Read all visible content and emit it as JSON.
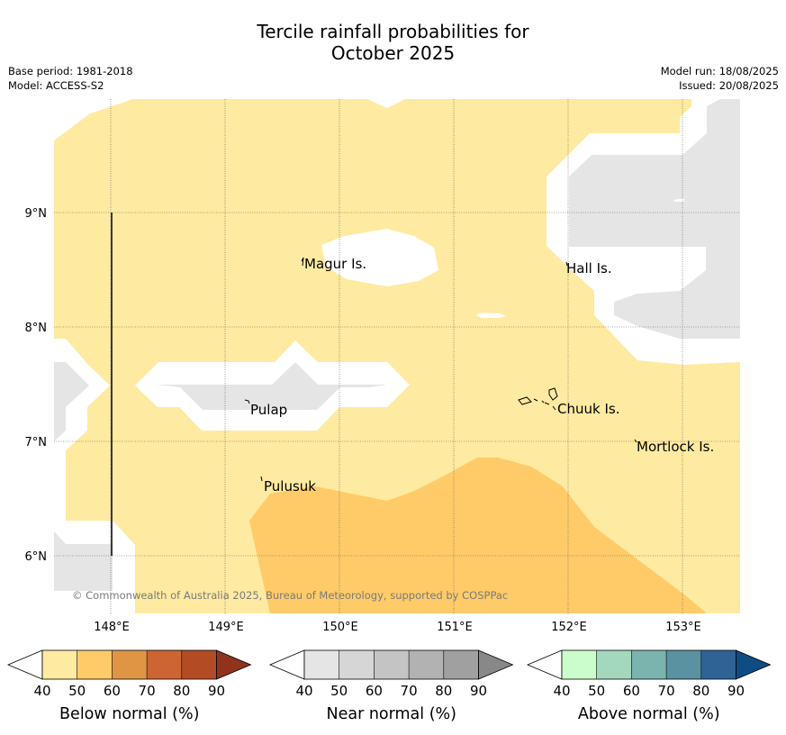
{
  "title": {
    "line1": "Tercile rainfall probabilities for",
    "line2": "October 2025"
  },
  "meta": {
    "base_period": "Base period: 1981-2018",
    "model": "Model: ACCESS-S2",
    "model_run": "Model run: 18/08/2025",
    "issued": "Issued: 20/08/2025"
  },
  "map": {
    "lon_ticks": [
      "148°E",
      "149°E",
      "150°E",
      "151°E",
      "152°E",
      "153°E"
    ],
    "lat_ticks": [
      "9°N",
      "8°N",
      "7°N",
      "6°N"
    ],
    "islands": [
      {
        "name": "Magur Is."
      },
      {
        "name": "Hall Is."
      },
      {
        "name": "Pulap"
      },
      {
        "name": "Chuuk Is."
      },
      {
        "name": "Mortlock Is."
      },
      {
        "name": "Pulusuk"
      }
    ],
    "copyright": "© Commonwealth of Australia 2025, Bureau of Meteorology, supported by COSPPac",
    "colors": {
      "below_40_50": "#feeaa0",
      "below_50_60": "#fecb68",
      "near_40_50": "#e5e5e5"
    }
  },
  "legends": [
    {
      "label": "Below normal (%)",
      "ticks": [
        "40",
        "50",
        "60",
        "70",
        "80",
        "90"
      ],
      "colors": [
        "#feeaa0",
        "#fecb68",
        "#e09545",
        "#cc6533",
        "#b34c25",
        "#91321c"
      ]
    },
    {
      "label": "Near normal (%)",
      "ticks": [
        "40",
        "50",
        "60",
        "70",
        "80",
        "90"
      ],
      "colors": [
        "#e5e5e5",
        "#d6d6d6",
        "#c4c4c4",
        "#b2b2b2",
        "#a0a0a0",
        "#888888"
      ]
    },
    {
      "label": "Above normal (%)",
      "ticks": [
        "40",
        "50",
        "60",
        "70",
        "80",
        "90"
      ],
      "colors": [
        "#cbfdcc",
        "#a3d8bd",
        "#7bb3af",
        "#5a92a1",
        "#2f6396",
        "#0e4c84"
      ]
    }
  ]
}
